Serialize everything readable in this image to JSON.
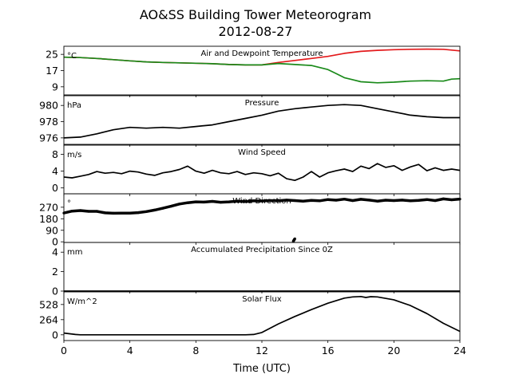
{
  "figure": {
    "title_line1": "AO&SS Building Tower Meteorogram",
    "title_line2": "2012-08-27",
    "xlabel": "Time (UTC)",
    "x_ticks": [
      "0",
      "4",
      "8",
      "12",
      "16",
      "20",
      "24"
    ]
  },
  "colors": {
    "temperature": "#e31a1c",
    "dewpoint": "#1a8a1a",
    "black": "#000000"
  },
  "chart_data": [
    {
      "type": "line",
      "title": "Air and Dewpoint Temperature",
      "unit_label": "°C",
      "xlim": [
        0,
        24
      ],
      "ylim": [
        5,
        29
      ],
      "y_ticks": [
        9,
        17,
        25
      ],
      "series": [
        {
          "color_key": "temperature",
          "x": [
            0,
            1,
            2,
            3,
            4,
            5,
            6,
            7,
            8,
            9,
            10,
            11,
            12,
            13,
            14,
            15,
            16,
            17,
            18,
            19,
            20,
            21,
            22,
            23,
            24
          ],
          "y": [
            23.6,
            23.4,
            23.0,
            22.4,
            21.8,
            21.3,
            21.0,
            20.8,
            20.6,
            20.4,
            20.0,
            19.8,
            19.8,
            21.0,
            22.0,
            23.0,
            24.0,
            25.5,
            26.5,
            27.0,
            27.3,
            27.5,
            27.6,
            27.5,
            26.7
          ]
        },
        {
          "color_key": "dewpoint",
          "x": [
            0,
            1,
            2,
            3,
            4,
            5,
            6,
            7,
            8,
            9,
            10,
            11,
            12,
            13,
            14,
            15,
            16,
            16.5,
            17,
            17.5,
            18,
            19,
            20,
            21,
            22,
            23,
            23.5,
            24
          ],
          "y": [
            23.6,
            23.4,
            23.0,
            22.4,
            21.8,
            21.3,
            21.0,
            20.8,
            20.6,
            20.4,
            20.0,
            19.8,
            19.8,
            20.5,
            20.0,
            19.5,
            17.5,
            15.5,
            13.5,
            12.5,
            11.5,
            11.0,
            11.3,
            11.8,
            12.0,
            11.8,
            12.8,
            13.0
          ]
        }
      ]
    },
    {
      "type": "line",
      "title": "Pressure",
      "unit_label": "hPa",
      "xlim": [
        0,
        24
      ],
      "ylim": [
        975.2,
        981.2
      ],
      "y_ticks": [
        976,
        978,
        980
      ],
      "series": [
        {
          "color_key": "black",
          "x": [
            0,
            1,
            2,
            3,
            4,
            5,
            6,
            7,
            8,
            9,
            10,
            11,
            12,
            13,
            14,
            15,
            16,
            17,
            18,
            19,
            20,
            21,
            22,
            23,
            24
          ],
          "y": [
            976.0,
            976.1,
            976.5,
            977.0,
            977.3,
            977.2,
            977.3,
            977.2,
            977.4,
            977.6,
            978.0,
            978.4,
            978.8,
            979.3,
            979.6,
            979.8,
            980.0,
            980.1,
            980.0,
            979.6,
            979.2,
            978.8,
            978.6,
            978.5,
            978.5
          ]
        }
      ]
    },
    {
      "type": "line",
      "title": "Wind Speed",
      "unit_label": "m/s",
      "xlim": [
        0,
        24
      ],
      "ylim": [
        -1.4,
        10.2
      ],
      "y_ticks": [
        0,
        4,
        8
      ],
      "series": [
        {
          "color_key": "black",
          "x": [
            0,
            0.5,
            1,
            1.5,
            2,
            2.5,
            3,
            3.5,
            4,
            4.5,
            5,
            5.5,
            6,
            6.5,
            7,
            7.5,
            8,
            8.5,
            9,
            9.5,
            10,
            10.5,
            11,
            11.5,
            12,
            12.5,
            13,
            13.5,
            14,
            14.5,
            15,
            15.5,
            16,
            16.5,
            17,
            17.5,
            18,
            18.5,
            19,
            19.5,
            20,
            20.5,
            21,
            21.5,
            22,
            22.5,
            23,
            23.5,
            24
          ],
          "y": [
            2.6,
            2.4,
            2.8,
            3.2,
            3.9,
            3.5,
            3.7,
            3.4,
            4.0,
            3.8,
            3.3,
            3.0,
            3.6,
            3.9,
            4.4,
            5.2,
            4.0,
            3.5,
            4.2,
            3.6,
            3.4,
            3.9,
            3.2,
            3.6,
            3.4,
            2.9,
            3.5,
            2.2,
            1.8,
            2.6,
            3.9,
            2.6,
            3.6,
            4.1,
            4.5,
            3.9,
            5.2,
            4.6,
            5.8,
            4.9,
            5.3,
            4.2,
            5.0,
            5.6,
            4.1,
            4.8,
            4.2,
            4.5,
            4.2
          ]
        }
      ]
    },
    {
      "type": "scatter",
      "title": "Wind Direction",
      "unit_label": "°",
      "xlim": [
        0,
        24
      ],
      "ylim": [
        -5,
        375
      ],
      "y_ticks": [
        0,
        90,
        180,
        270
      ],
      "series": [
        {
          "color_key": "black",
          "x": [
            0,
            0.5,
            1,
            1.5,
            2,
            2.5,
            3,
            3.5,
            4,
            4.5,
            5,
            5.5,
            6,
            6.5,
            7,
            7.5,
            8,
            8.5,
            9,
            9.5,
            10,
            10.5,
            11,
            11.5,
            12,
            12.5,
            13,
            13.5,
            14,
            14.5,
            15,
            15.5,
            16,
            16.5,
            17,
            17.5,
            18,
            18.5,
            19,
            19.5,
            20,
            20.5,
            21,
            21.5,
            22,
            22.5,
            23,
            23.5,
            24
          ],
          "y": [
            225,
            240,
            244,
            238,
            238,
            226,
            223,
            224,
            224,
            228,
            236,
            248,
            262,
            278,
            295,
            305,
            312,
            310,
            316,
            309,
            312,
            318,
            314,
            320,
            319,
            322,
            320,
            326,
            322,
            318,
            323,
            320,
            330,
            325,
            333,
            322,
            332,
            326,
            318,
            325,
            322,
            326,
            320,
            324,
            330,
            322,
            335,
            328,
            334
          ]
        },
        {
          "color_key": "black",
          "x": [
            13.9,
            13.92,
            13.94,
            13.96,
            13.98,
            14.0
          ],
          "y": [
            4,
            8,
            12,
            16,
            20,
            24
          ]
        }
      ]
    },
    {
      "type": "line",
      "title": "Accumulated Precipitation Since 0Z",
      "unit_label": "mm",
      "xlim": [
        0,
        24
      ],
      "ylim": [
        0,
        5
      ],
      "y_ticks": [
        0,
        2,
        4
      ],
      "series": [
        {
          "color_key": "black",
          "x": [
            0,
            24
          ],
          "y": [
            0,
            0
          ]
        }
      ]
    },
    {
      "type": "line",
      "title": "Solar Flux",
      "unit_label": "W/m^2",
      "xlim": [
        0,
        24
      ],
      "ylim": [
        -100,
        748
      ],
      "y_ticks": [
        0,
        264,
        528
      ],
      "series": [
        {
          "color_key": "black",
          "x": [
            0,
            0.3,
            0.7,
            1,
            2,
            4,
            6,
            8,
            10,
            11,
            11.5,
            12,
            13,
            14,
            15,
            16,
            17,
            17.5,
            18,
            18.3,
            18.6,
            19,
            20,
            21,
            22,
            23,
            24
          ],
          "y": [
            30,
            20,
            5,
            0,
            0,
            0,
            0,
            0,
            0,
            0,
            5,
            40,
            190,
            320,
            440,
            550,
            640,
            660,
            668,
            650,
            665,
            660,
            610,
            510,
            370,
            200,
            60
          ]
        }
      ]
    }
  ]
}
